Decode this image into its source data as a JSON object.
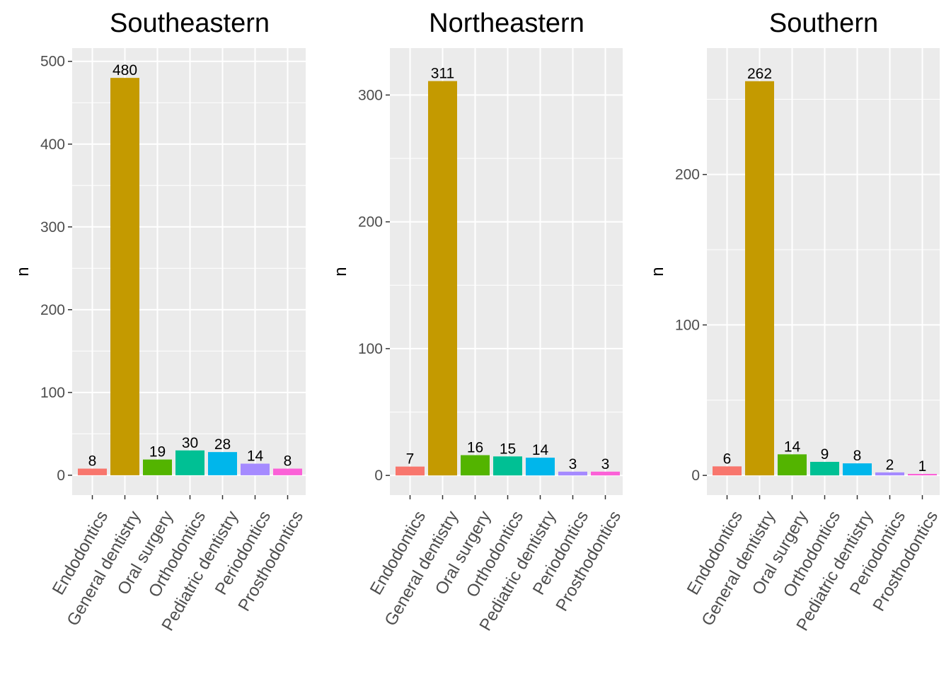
{
  "chart_data": [
    {
      "type": "bar",
      "title": "Southeastern",
      "xlabel": "",
      "ylabel": "n",
      "categories": [
        "Endodontics",
        "General dentistry",
        "Oral surgery",
        "Orthodontics",
        "Pediatric dentistry",
        "Periodontics",
        "Prosthodontics"
      ],
      "values": [
        8,
        480,
        19,
        30,
        28,
        14,
        8
      ],
      "yticks": [
        0,
        100,
        200,
        300,
        400,
        500
      ],
      "ylim": [
        -24,
        516
      ]
    },
    {
      "type": "bar",
      "title": "Northeastern",
      "xlabel": "",
      "ylabel": "n",
      "categories": [
        "Endodontics",
        "General dentistry",
        "Oral surgery",
        "Orthodontics",
        "Pediatric dentistry",
        "Periodontics",
        "Prosthodontics"
      ],
      "values": [
        7,
        311,
        16,
        15,
        14,
        3,
        3
      ],
      "yticks": [
        0,
        100,
        200,
        300
      ],
      "ylim": [
        -15.5,
        337
      ]
    },
    {
      "type": "bar",
      "title": "Southern",
      "xlabel": "",
      "ylabel": "n",
      "categories": [
        "Endodontics",
        "General dentistry",
        "Oral surgery",
        "Orthodontics",
        "Pediatric dentistry",
        "Periodontics",
        "Prosthodontics"
      ],
      "values": [
        6,
        262,
        14,
        9,
        8,
        2,
        1
      ],
      "yticks": [
        0,
        100,
        200
      ],
      "ylim": [
        -13.1,
        284
      ]
    }
  ],
  "colors": [
    "#F8766D",
    "#C49A00",
    "#53B400",
    "#00C094",
    "#00B6EB",
    "#A58AFF",
    "#FB61D7"
  ],
  "panel_background": "#EBEBEB",
  "grid_color": "#FFFFFF"
}
